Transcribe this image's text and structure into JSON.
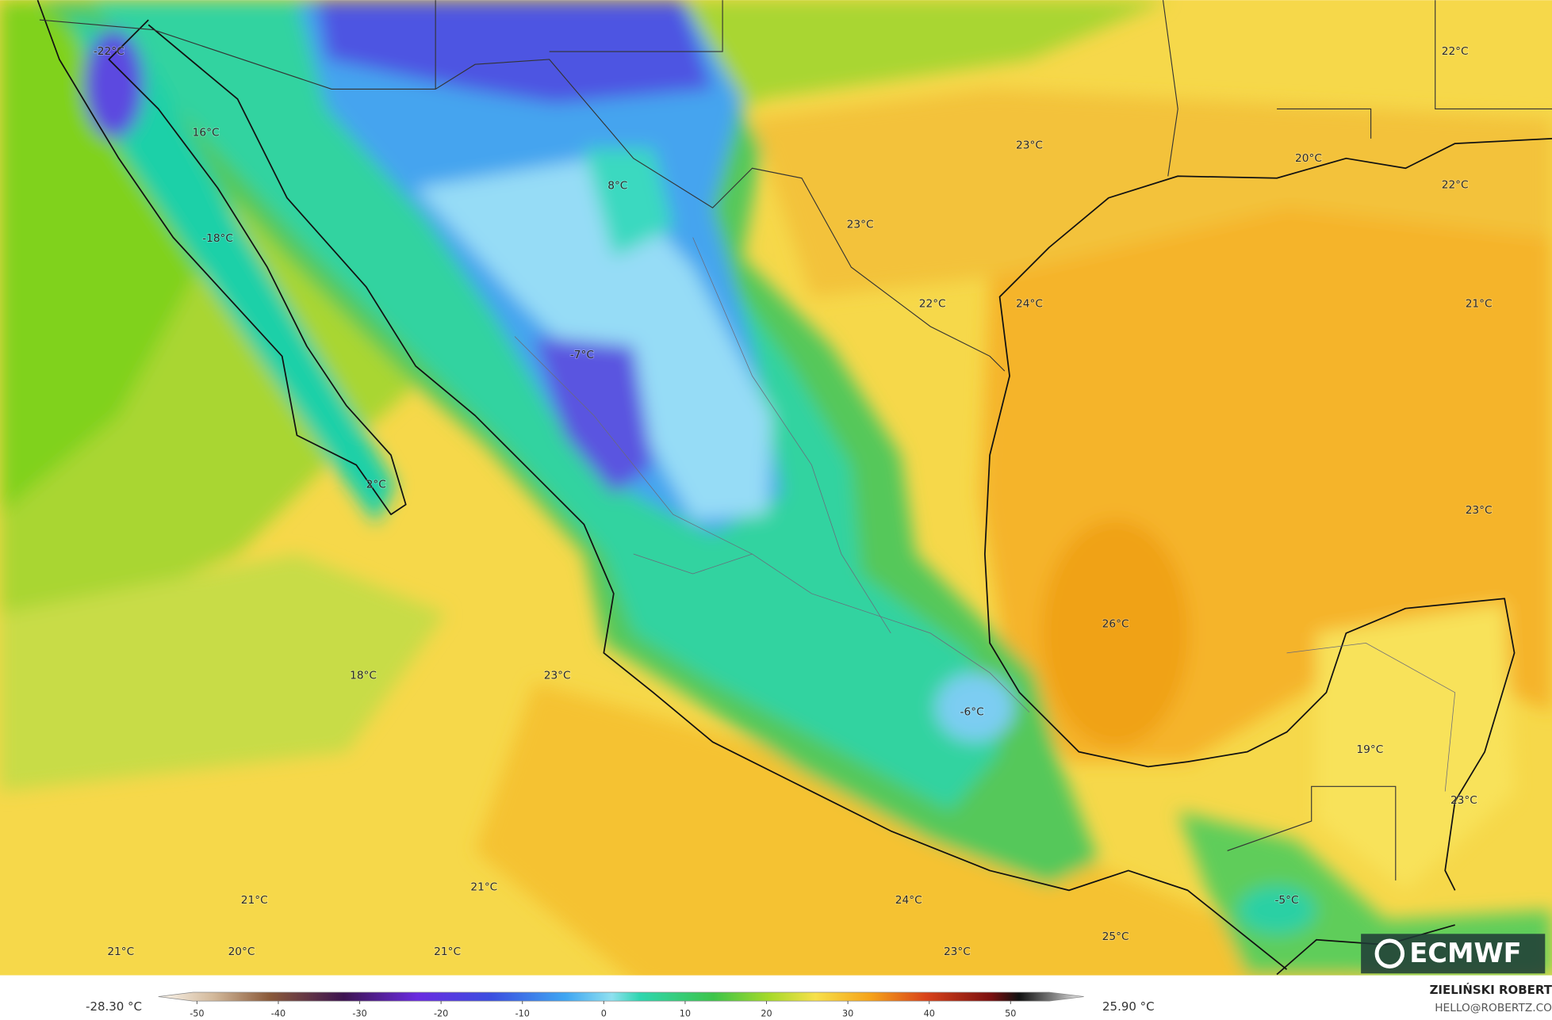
{
  "map": {
    "labels": [
      "-22°C",
      "16°C",
      "-18°C",
      "8°C",
      "23°C",
      "22°C",
      "20°C",
      "22°C",
      "23°C",
      "22°C",
      "24°C",
      "21°C",
      "-7°C",
      "2°C",
      "23°C",
      "26°C",
      "18°C",
      "23°C",
      "-6°C",
      "19°C",
      "23°C",
      "21°C",
      "21°C",
      "24°C",
      "-5°C",
      "25°C",
      "21°C",
      "20°C",
      "21°C",
      "23°C"
    ],
    "colorbar": {
      "min_label": "-28.30 °C",
      "max_label": "25.90 °C",
      "ticks": [
        -50,
        -40,
        -30,
        -20,
        -10,
        0,
        10,
        20,
        30,
        40,
        50
      ]
    },
    "logo": "ECMWF",
    "credit": {
      "author": "ZIELIŃSKI ROBERT",
      "email": "HELLO@ROBERTZ.CO"
    }
  }
}
